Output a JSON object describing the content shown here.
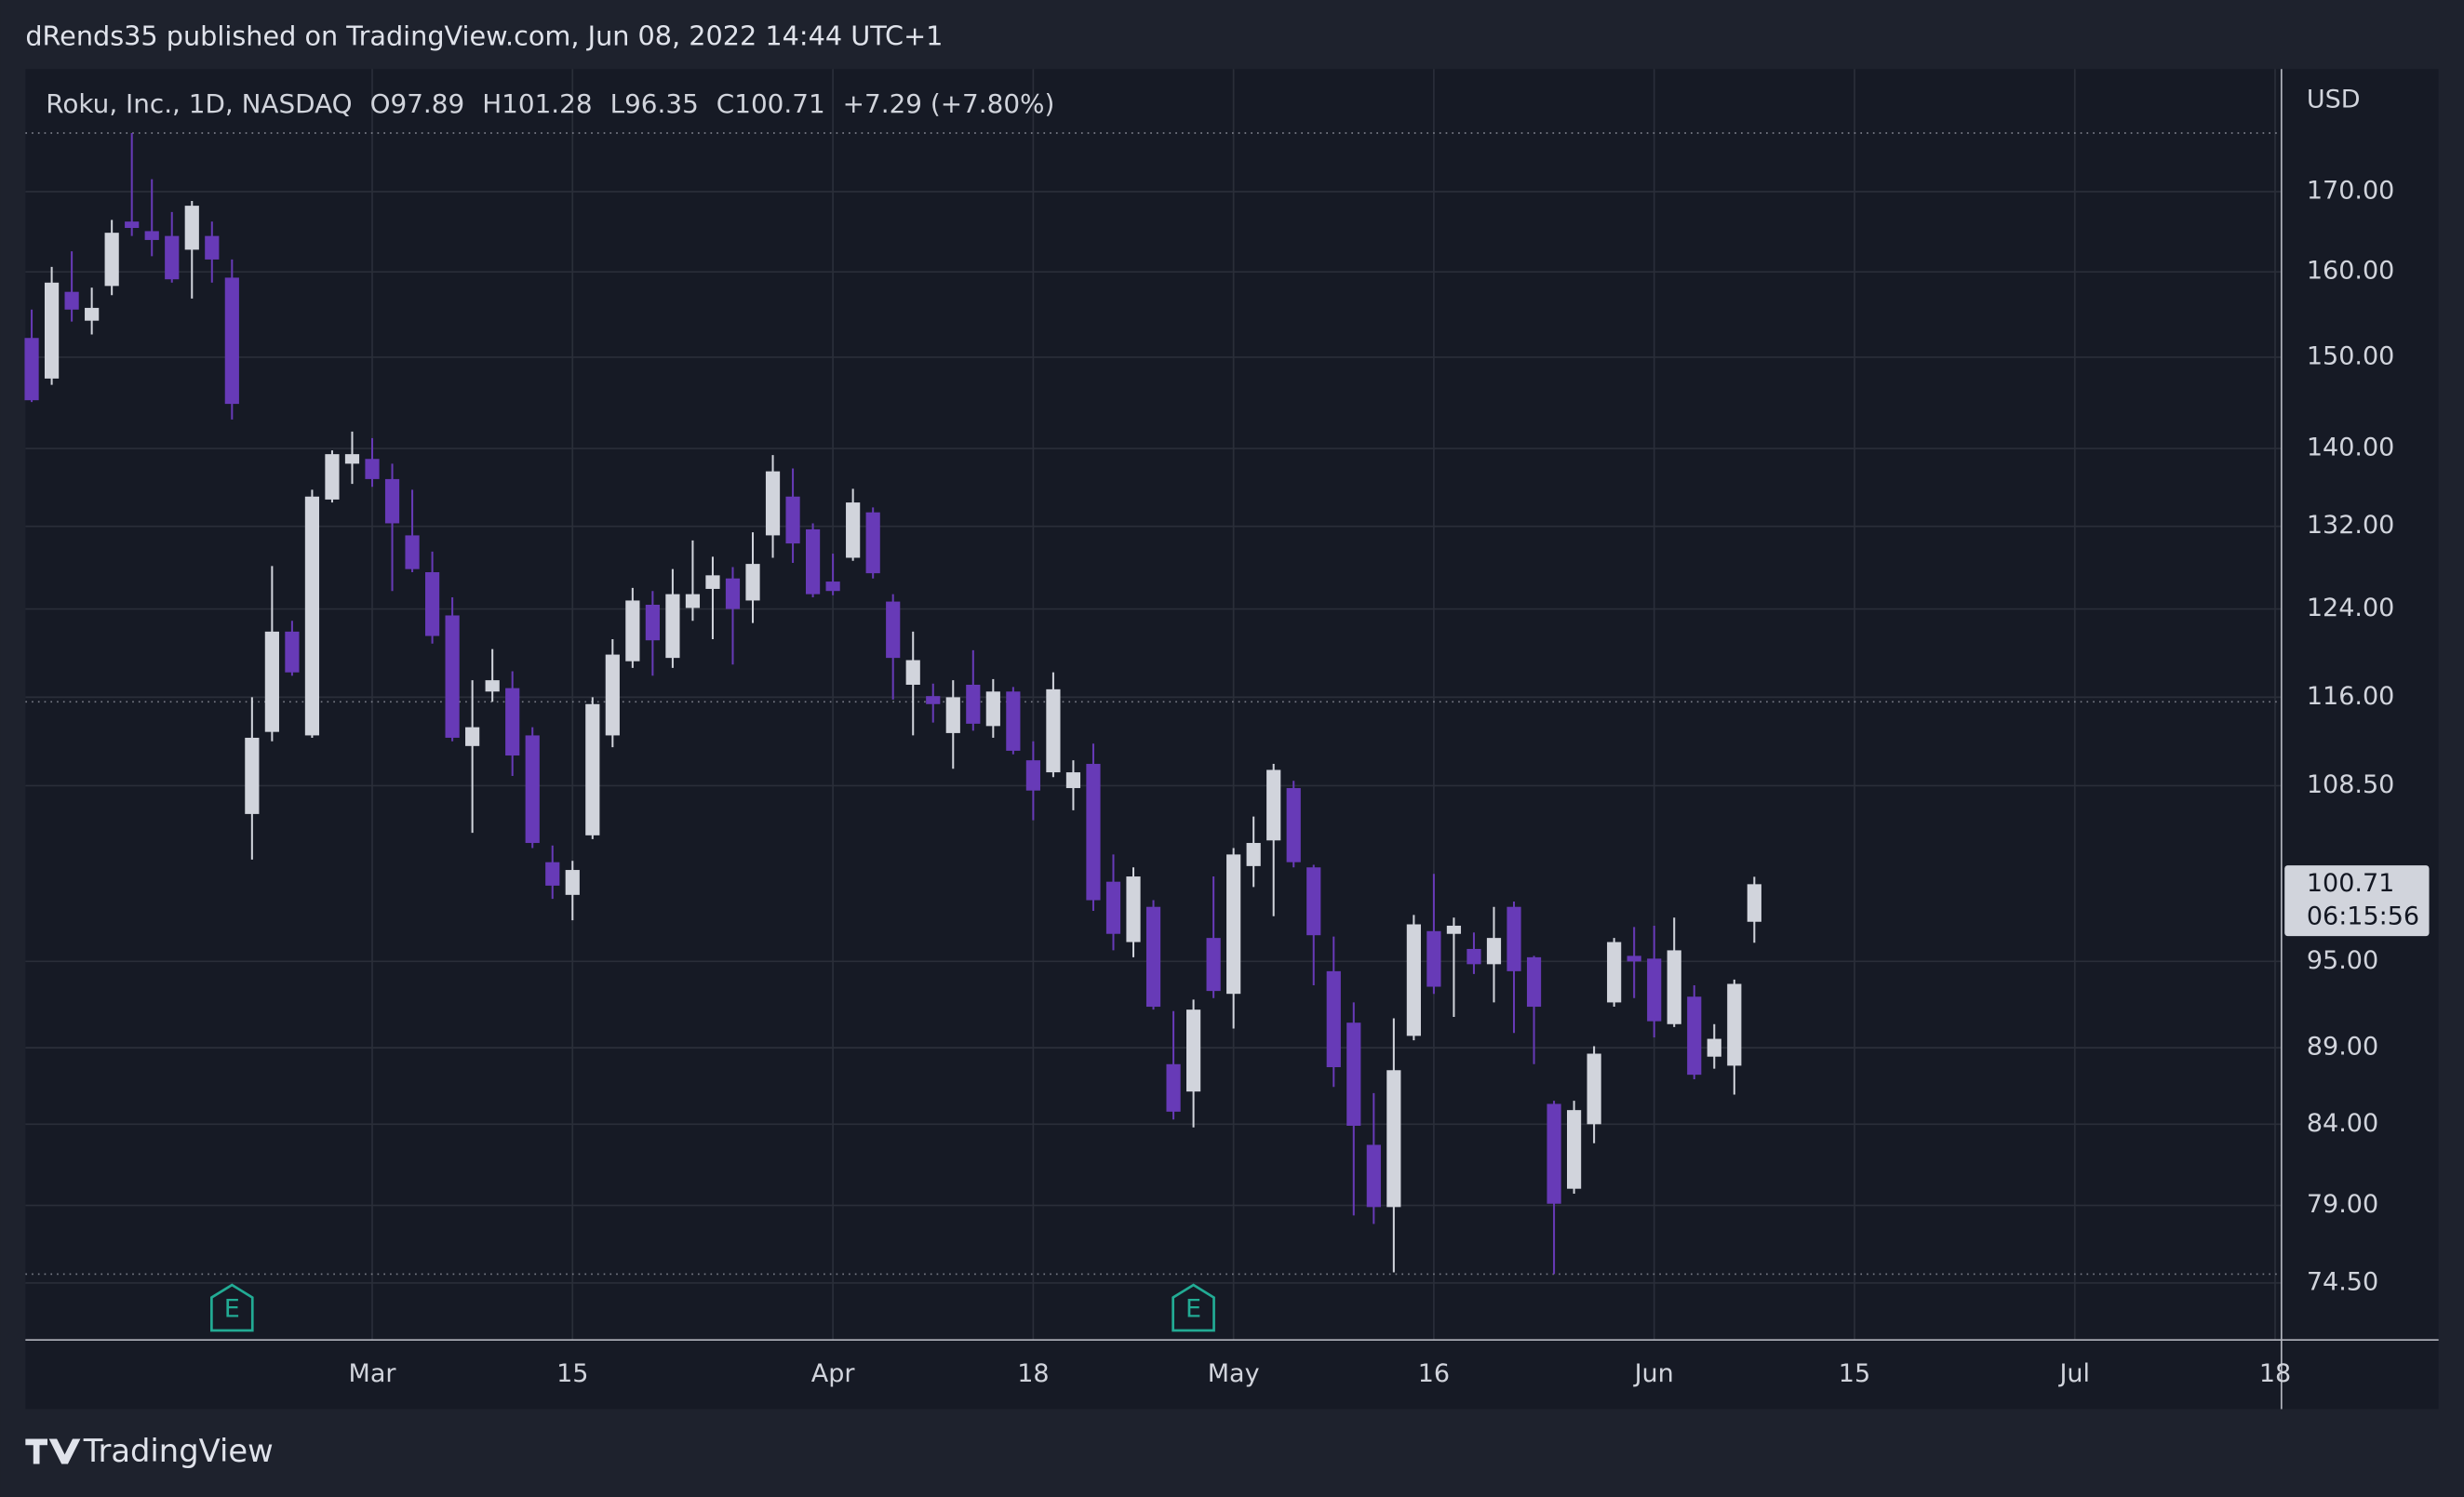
{
  "header": {
    "text": "dRends35 published on TradingView.com, Jun 08, 2022 14:44 UTC+1"
  },
  "footer": {
    "logo_text": "TradingView"
  },
  "chart_data": {
    "type": "candlestick",
    "title": "Roku, Inc., 1D, NASDAQ",
    "legend_values": [
      "O97.89",
      "H101.28",
      "L96.35",
      "C100.71",
      "+7.29 (+7.80%)"
    ],
    "currency": "USD",
    "countdown": "06:15:56",
    "categories": [
      null,
      null,
      null,
      null,
      null,
      null,
      null,
      null,
      null,
      null,
      null,
      null,
      null,
      null,
      null,
      null,
      null,
      "Mar",
      null,
      null,
      null,
      null,
      null,
      null,
      null,
      null,
      null,
      "15",
      null,
      null,
      null,
      null,
      null,
      null,
      null,
      null,
      null,
      null,
      null,
      null,
      "Apr",
      null,
      null,
      null,
      null,
      null,
      null,
      null,
      null,
      null,
      "18",
      null,
      null,
      null,
      null,
      null,
      null,
      null,
      null,
      null,
      "May",
      null,
      null,
      null,
      null,
      null,
      null,
      null,
      null,
      null,
      "16",
      null,
      null,
      null,
      null,
      null,
      null,
      null,
      null,
      null,
      null,
      "Jun",
      null,
      null,
      null,
      null,
      null,
      null,
      null,
      null,
      null,
      "15",
      null,
      null,
      null,
      null,
      null,
      null,
      null,
      null,
      null,
      null,
      "Jul",
      null,
      null,
      null,
      null,
      null,
      null,
      null,
      null,
      null,
      "18"
    ],
    "open": [
      152.2,
      147.6,
      157.6,
      154.2,
      158.3,
      166.2,
      165.0,
      164.4,
      162.7,
      164.4,
      159.3,
      106.2,
      113.0,
      121.9,
      112.7,
      134.7,
      138.4,
      138.9,
      136.8,
      131.1,
      127.5,
      123.4,
      111.8,
      116.5,
      116.8,
      112.7,
      102.4,
      99.9,
      104.5,
      112.7,
      119.2,
      124.4,
      119.5,
      124.1,
      125.9,
      126.9,
      124.8,
      131.1,
      135.0,
      131.7,
      126.6,
      128.9,
      133.4,
      124.7,
      117.1,
      116.1,
      112.9,
      117.1,
      113.5,
      116.5,
      110.6,
      109.6,
      108.3,
      110.3,
      100.9,
      96.4,
      99.0,
      87.9,
      86.1,
      96.7,
      92.7,
      102.1,
      104.1,
      108.3,
      102.0,
      94.3,
      90.7,
      82.7,
      78.9,
      89.8,
      97.2,
      97.0,
      95.9,
      94.8,
      99.0,
      95.3,
      85.3,
      80.0,
      84.0,
      92.1,
      95.4,
      95.2,
      90.6,
      92.5,
      88.4,
      87.8,
      97.89,
      null,
      null,
      null,
      null,
      null,
      null,
      null,
      null,
      null,
      null,
      null,
      null,
      null,
      null,
      null,
      null,
      null,
      null,
      null,
      null,
      null,
      null,
      null,
      null,
      null,
      null
    ],
    "high": [
      155.5,
      160.6,
      162.5,
      158.1,
      166.4,
      177.7,
      171.6,
      167.4,
      168.8,
      166.2,
      161.5,
      116.0,
      128.1,
      122.9,
      135.7,
      139.8,
      141.8,
      141.1,
      138.4,
      135.7,
      129.5,
      125.1,
      117.5,
      120.3,
      118.3,
      113.4,
      103.7,
      102.5,
      116.0,
      121.2,
      126.0,
      125.7,
      127.8,
      130.6,
      129.0,
      128.0,
      131.4,
      139.3,
      137.9,
      132.3,
      129.3,
      135.8,
      133.9,
      125.4,
      121.9,
      117.2,
      117.5,
      120.2,
      117.6,
      116.9,
      112.2,
      118.2,
      110.6,
      112.0,
      103.0,
      102.0,
      99.5,
      91.5,
      92.3,
      101.3,
      103.5,
      106.0,
      110.3,
      108.9,
      102.2,
      96.8,
      92.1,
      86.0,
      91.0,
      98.4,
      101.5,
      98.2,
      97.1,
      99.0,
      99.4,
      95.4,
      85.5,
      85.5,
      89.1,
      96.7,
      97.5,
      97.6,
      98.2,
      93.3,
      90.6,
      93.7,
      101.28,
      null,
      null,
      null,
      null,
      null,
      null,
      null,
      null,
      null,
      null,
      null,
      null,
      null,
      null,
      null,
      null,
      null,
      null,
      null,
      null,
      null,
      null,
      null,
      null,
      null,
      null
    ],
    "low": [
      145.0,
      146.9,
      154.1,
      152.6,
      157.2,
      164.4,
      161.9,
      158.7,
      156.8,
      158.7,
      143.1,
      102.6,
      112.2,
      117.9,
      112.5,
      134.4,
      136.3,
      136.0,
      125.7,
      127.5,
      120.8,
      112.2,
      104.7,
      115.6,
      109.3,
      103.5,
      99.6,
      98.0,
      104.2,
      111.7,
      118.6,
      117.9,
      118.6,
      122.9,
      121.2,
      118.9,
      122.7,
      128.9,
      128.4,
      125.1,
      125.3,
      128.6,
      126.9,
      115.8,
      112.7,
      113.8,
      109.9,
      113.1,
      112.5,
      111.1,
      105.7,
      109.2,
      106.5,
      98.7,
      95.8,
      95.3,
      91.6,
      84.3,
      83.8,
      92.4,
      90.3,
      100.5,
      98.3,
      102.0,
      93.3,
      86.4,
      78.4,
      77.9,
      75.1,
      89.5,
      92.7,
      91.1,
      94.1,
      92.1,
      90.0,
      87.9,
      75.0,
      79.7,
      82.8,
      91.8,
      92.4,
      89.7,
      90.4,
      86.9,
      87.6,
      85.9,
      96.35,
      null,
      null,
      null,
      null,
      null,
      null,
      null,
      null,
      null,
      null,
      null,
      null,
      null,
      null,
      null,
      null,
      null,
      null,
      null,
      null,
      null,
      null,
      null,
      null,
      null,
      null
    ],
    "close": [
      145.2,
      158.7,
      155.5,
      155.7,
      164.8,
      165.4,
      163.9,
      159.1,
      168.2,
      161.5,
      144.8,
      112.5,
      121.9,
      118.2,
      135.0,
      139.4,
      139.4,
      136.8,
      132.3,
      127.8,
      121.5,
      112.5,
      113.4,
      117.5,
      111.0,
      103.9,
      100.6,
      101.8,
      115.4,
      119.8,
      124.8,
      121.1,
      125.4,
      125.4,
      127.2,
      124.0,
      128.3,
      137.6,
      130.3,
      125.4,
      125.7,
      134.4,
      127.4,
      119.5,
      119.3,
      115.4,
      116.0,
      113.7,
      116.5,
      111.4,
      108.1,
      116.7,
      109.6,
      99.5,
      97.0,
      101.3,
      91.8,
      84.8,
      91.6,
      92.9,
      103.0,
      103.9,
      109.8,
      102.4,
      96.9,
      87.7,
      83.9,
      78.9,
      87.5,
      97.7,
      93.2,
      97.6,
      94.8,
      96.7,
      94.3,
      91.8,
      79.1,
      84.9,
      88.6,
      96.4,
      95.0,
      90.8,
      95.8,
      87.2,
      89.6,
      93.4,
      100.71,
      null,
      null,
      null,
      null,
      null,
      null,
      null,
      null,
      null,
      null,
      null,
      null,
      null,
      null,
      null,
      null,
      null,
      null,
      null,
      null,
      null,
      null,
      null,
      null,
      null,
      null
    ],
    "events": [
      null,
      null,
      null,
      null,
      null,
      null,
      null,
      null,
      null,
      null,
      "E",
      null,
      null,
      null,
      null,
      null,
      null,
      null,
      null,
      null,
      null,
      null,
      null,
      null,
      null,
      null,
      null,
      null,
      null,
      null,
      null,
      null,
      null,
      null,
      null,
      null,
      null,
      null,
      null,
      null,
      null,
      null,
      null,
      null,
      null,
      null,
      null,
      null,
      null,
      null,
      null,
      null,
      null,
      null,
      null,
      null,
      null,
      null,
      "E",
      null,
      null,
      null,
      null,
      null,
      null,
      null,
      null,
      null,
      null,
      null,
      null,
      null,
      null,
      null,
      null,
      null,
      null,
      null,
      null,
      null,
      null,
      null,
      null,
      null,
      null,
      null,
      null,
      null,
      null,
      null,
      null,
      null,
      null,
      null,
      null,
      null,
      null,
      null,
      null,
      null,
      null,
      null,
      null,
      null,
      null,
      null,
      null,
      null,
      null,
      null,
      null,
      null,
      null
    ],
    "reference_lines": [
      177.7,
      115.6,
      75.0
    ],
    "up_color": "#d1d4dc",
    "down_color": "#673ab7",
    "event_color": "#22ab94",
    "ylim": [
      71.36,
      186.5
    ],
    "log_y": true,
    "grid": true,
    "yticks": [
      {
        "value": 170,
        "label": "170.00"
      },
      {
        "value": 160,
        "label": "160.00"
      },
      {
        "value": 150,
        "label": "150.00"
      },
      {
        "value": 140,
        "label": "140.00"
      },
      {
        "value": 132,
        "label": "132.00"
      },
      {
        "value": 124,
        "label": "124.00"
      },
      {
        "value": 116,
        "label": "116.00"
      },
      {
        "value": 108.5,
        "label": "108.50"
      },
      {
        "value": 95,
        "label": "95.00"
      },
      {
        "value": 89,
        "label": "89.00"
      },
      {
        "value": 84,
        "label": "84.00"
      },
      {
        "value": 79,
        "label": "79.00"
      },
      {
        "value": 74.5,
        "label": "74.50"
      }
    ]
  }
}
